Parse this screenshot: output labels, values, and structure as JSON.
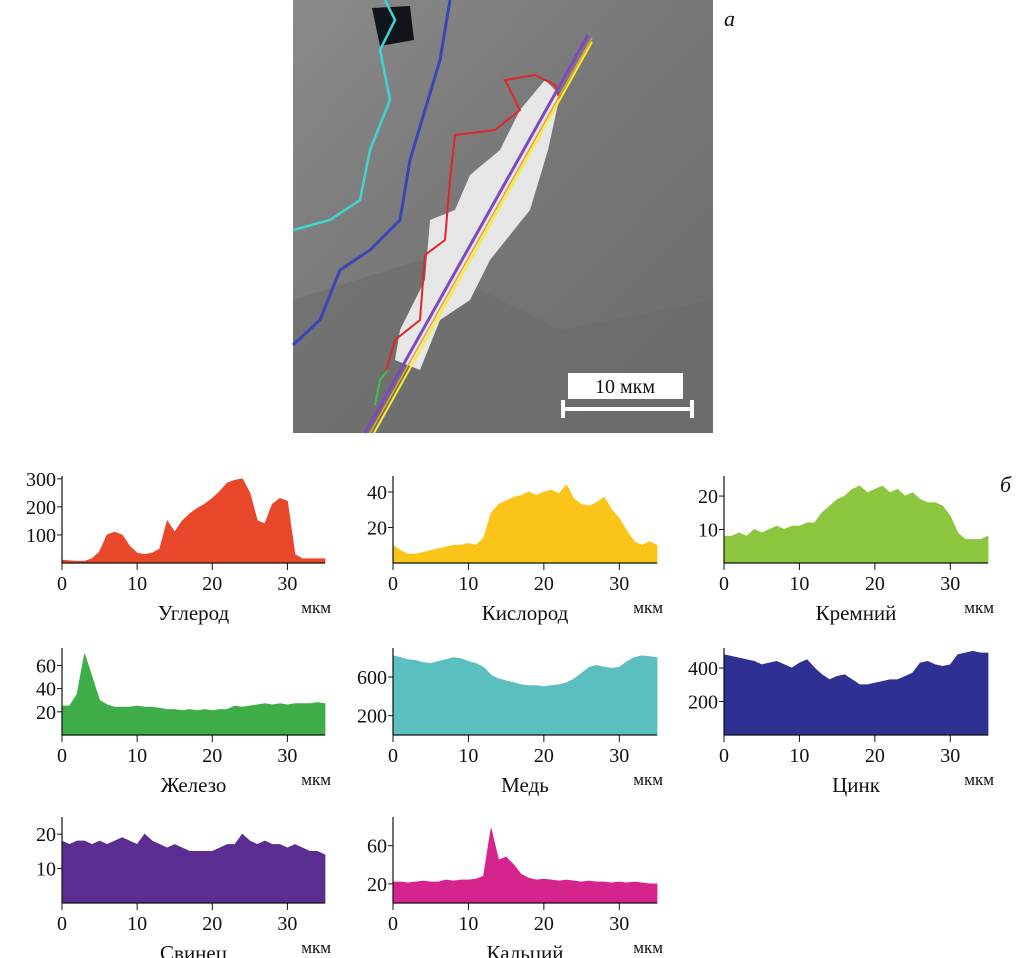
{
  "panel_labels": [
    "а",
    "б"
  ],
  "scale_bar_label": "10 мкм",
  "chart_data": [
    {
      "type": "area",
      "title": "Углерод",
      "xlabel": "мкм",
      "color": "#e8472a",
      "xlim": [
        0,
        35
      ],
      "xticks": [
        0,
        10,
        20,
        30
      ],
      "ylim": [
        0,
        310
      ],
      "yticks": [
        100,
        200,
        300
      ],
      "x": [
        0,
        1,
        2,
        3,
        4,
        5,
        6,
        7,
        8,
        9,
        10,
        11,
        12,
        13,
        14,
        15,
        16,
        17,
        18,
        19,
        20,
        21,
        22,
        23,
        24,
        25,
        26,
        27,
        28,
        29,
        30,
        31,
        32,
        33,
        34,
        35
      ],
      "values": [
        10,
        8,
        6,
        6,
        15,
        40,
        100,
        110,
        100,
        60,
        35,
        30,
        35,
        50,
        150,
        110,
        150,
        175,
        195,
        210,
        230,
        255,
        285,
        295,
        300,
        250,
        150,
        140,
        210,
        230,
        220,
        30,
        15,
        15,
        15,
        15
      ]
    },
    {
      "type": "area",
      "title": "Кислород",
      "xlabel": "мкм",
      "color": "#fbc418",
      "xlim": [
        0,
        35
      ],
      "xticks": [
        0,
        10,
        20,
        30
      ],
      "ylim": [
        0,
        49
      ],
      "yticks": [
        20,
        40
      ],
      "x": [
        0,
        1,
        2,
        3,
        4,
        5,
        6,
        7,
        8,
        9,
        10,
        11,
        12,
        13,
        14,
        15,
        16,
        17,
        18,
        19,
        20,
        21,
        22,
        23,
        24,
        25,
        26,
        27,
        28,
        29,
        30,
        31,
        32,
        33,
        34,
        35
      ],
      "values": [
        10,
        7,
        5,
        5,
        6,
        7,
        8,
        9,
        10,
        10,
        11,
        10,
        14,
        28,
        33,
        35,
        37,
        38,
        40,
        38,
        40,
        41,
        39,
        44,
        36,
        33,
        32,
        34,
        37,
        30,
        25,
        18,
        12,
        10,
        12,
        10
      ]
    },
    {
      "type": "area",
      "title": "Кремний",
      "xlabel": "мкм",
      "color": "#8cc63f",
      "xlim": [
        0,
        35
      ],
      "xticks": [
        0,
        10,
        20,
        30
      ],
      "ylim": [
        0,
        26
      ],
      "yticks": [
        10,
        20
      ],
      "x": [
        0,
        1,
        2,
        3,
        4,
        5,
        6,
        7,
        8,
        9,
        10,
        11,
        12,
        13,
        14,
        15,
        16,
        17,
        18,
        19,
        20,
        21,
        22,
        23,
        24,
        25,
        26,
        27,
        28,
        29,
        30,
        31,
        32,
        33,
        34,
        35
      ],
      "values": [
        8,
        8,
        9,
        8,
        10,
        9,
        10,
        11,
        10,
        11,
        11,
        12,
        12,
        15,
        17,
        19,
        20,
        22,
        23,
        21,
        22,
        23,
        21,
        22,
        20,
        21,
        19,
        18,
        18,
        17,
        14,
        9,
        7,
        7,
        7,
        8
      ]
    },
    {
      "type": "area",
      "title": "Железо",
      "xlabel": "мкм",
      "color": "#3fae49",
      "xlim": [
        0,
        35
      ],
      "xticks": [
        0,
        10,
        20,
        30
      ],
      "ylim": [
        0,
        75
      ],
      "yticks": [
        20,
        40,
        60
      ],
      "x": [
        0,
        1,
        2,
        3,
        4,
        5,
        6,
        7,
        8,
        9,
        10,
        11,
        12,
        13,
        14,
        15,
        16,
        17,
        18,
        19,
        20,
        21,
        22,
        23,
        24,
        25,
        26,
        27,
        28,
        29,
        30,
        31,
        32,
        33,
        34,
        35
      ],
      "values": [
        25,
        25,
        35,
        70,
        50,
        30,
        26,
        24,
        24,
        24,
        25,
        24,
        24,
        23,
        22,
        22,
        21,
        22,
        21,
        22,
        21,
        22,
        22,
        25,
        24,
        25,
        26,
        27,
        26,
        27,
        26,
        27,
        27,
        27,
        28,
        27
      ]
    },
    {
      "type": "area",
      "title": "Медь",
      "xlabel": "мкм",
      "color": "#5bbfbf",
      "xlim": [
        0,
        35
      ],
      "xticks": [
        0,
        10,
        20,
        30
      ],
      "ylim": [
        0,
        900
      ],
      "yticks": [
        200,
        600
      ],
      "x": [
        0,
        1,
        2,
        3,
        4,
        5,
        6,
        7,
        8,
        9,
        10,
        11,
        12,
        13,
        14,
        15,
        16,
        17,
        18,
        19,
        20,
        21,
        22,
        23,
        24,
        25,
        26,
        27,
        28,
        29,
        30,
        31,
        32,
        33,
        34,
        35
      ],
      "values": [
        820,
        800,
        780,
        770,
        750,
        740,
        760,
        780,
        800,
        790,
        760,
        740,
        700,
        620,
        580,
        560,
        540,
        520,
        510,
        510,
        500,
        510,
        520,
        540,
        580,
        640,
        700,
        720,
        700,
        690,
        700,
        760,
        800,
        820,
        810,
        800
      ]
    },
    {
      "type": "area",
      "title": "Цинк",
      "xlabel": "мкм",
      "color": "#2e3191",
      "xlim": [
        0,
        35
      ],
      "xticks": [
        0,
        10,
        20,
        30
      ],
      "ylim": [
        0,
        520
      ],
      "yticks": [
        200,
        400
      ],
      "x": [
        0,
        1,
        2,
        3,
        4,
        5,
        6,
        7,
        8,
        9,
        10,
        11,
        12,
        13,
        14,
        15,
        16,
        17,
        18,
        19,
        20,
        21,
        22,
        23,
        24,
        25,
        26,
        27,
        28,
        29,
        30,
        31,
        32,
        33,
        34,
        35
      ],
      "values": [
        480,
        470,
        460,
        450,
        440,
        420,
        430,
        440,
        420,
        400,
        430,
        450,
        400,
        360,
        330,
        350,
        360,
        330,
        300,
        300,
        310,
        320,
        330,
        330,
        350,
        370,
        430,
        440,
        420,
        410,
        420,
        480,
        490,
        500,
        490,
        490
      ]
    },
    {
      "type": "area",
      "title": "Свинец",
      "xlabel": "мкм",
      "color": "#5c2d91",
      "xlim": [
        0,
        35
      ],
      "xticks": [
        0,
        10,
        20,
        30
      ],
      "ylim": [
        0,
        25
      ],
      "yticks": [
        10,
        20
      ],
      "x": [
        0,
        1,
        2,
        3,
        4,
        5,
        6,
        7,
        8,
        9,
        10,
        11,
        12,
        13,
        14,
        15,
        16,
        17,
        18,
        19,
        20,
        21,
        22,
        23,
        24,
        25,
        26,
        27,
        28,
        29,
        30,
        31,
        32,
        33,
        34,
        35
      ],
      "values": [
        18,
        17,
        18,
        18,
        17,
        18,
        17,
        18,
        19,
        18,
        17,
        20,
        18,
        17,
        16,
        17,
        16,
        15,
        15,
        15,
        15,
        16,
        17,
        17,
        20,
        18,
        17,
        18,
        17,
        17,
        16,
        17,
        16,
        15,
        15,
        14
      ]
    },
    {
      "type": "area",
      "title": "Кальций",
      "xlabel": "мкм",
      "color": "#d6248e",
      "xlim": [
        0,
        35
      ],
      "xticks": [
        0,
        10,
        20,
        30
      ],
      "ylim": [
        0,
        90
      ],
      "yticks": [
        20,
        60
      ],
      "x": [
        0,
        1,
        2,
        3,
        4,
        5,
        6,
        7,
        8,
        9,
        10,
        11,
        12,
        13,
        14,
        15,
        16,
        17,
        18,
        19,
        20,
        21,
        22,
        23,
        24,
        25,
        26,
        27,
        28,
        29,
        30,
        31,
        32,
        33,
        34,
        35
      ],
      "values": [
        22,
        22,
        21,
        22,
        23,
        22,
        22,
        24,
        23,
        24,
        24,
        25,
        28,
        78,
        45,
        48,
        40,
        30,
        26,
        24,
        25,
        24,
        23,
        24,
        23,
        22,
        23,
        22,
        22,
        21,
        22,
        21,
        22,
        21,
        20,
        20
      ]
    }
  ]
}
